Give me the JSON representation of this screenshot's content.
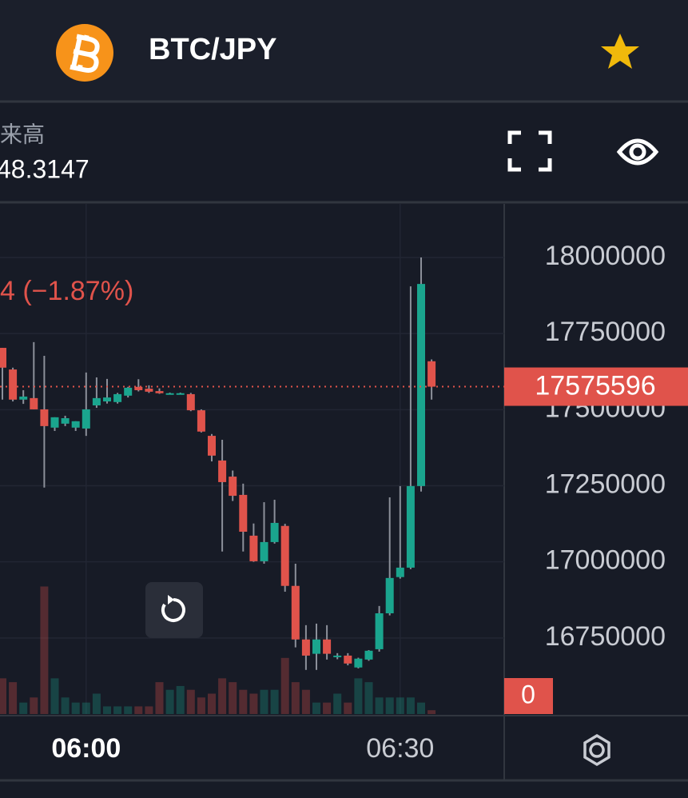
{
  "header": {
    "pair": "BTC/JPY"
  },
  "info": {
    "volume_label": "来高",
    "volume_value": "48.3147"
  },
  "chart_data": {
    "type": "candlestick",
    "change_label": "4 (−1.87%)",
    "categories": [
      null,
      null,
      null,
      null,
      null,
      null,
      null,
      null,
      "06:00",
      null,
      null,
      null,
      null,
      null,
      null,
      null,
      null,
      null,
      null,
      null,
      null,
      null,
      null,
      null,
      null,
      null,
      null,
      null,
      null,
      null,
      null,
      null,
      null,
      null,
      null,
      null,
      null,
      null,
      "06:30",
      null,
      null,
      null
    ],
    "open": [
      17703000,
      17632000,
      17533000,
      17538000,
      17501000,
      17441000,
      17454000,
      17441000,
      17438000,
      17514000,
      17527000,
      17525000,
      17546000,
      17575000,
      17569000,
      17561000,
      17553000,
      17553000,
      17551000,
      17498000,
      17414000,
      17333000,
      17280000,
      17220000,
      17086000,
      17002000,
      17065000,
      17118000,
      16921000,
      16745000,
      16698000,
      16745000,
      16687000,
      16692000,
      16653000,
      16679000,
      16713000,
      16831000,
      16950000,
      16981000,
      17249000,
      17659000
    ],
    "high": [
      17703000,
      17638000,
      17564000,
      17722000,
      17677000,
      17475000,
      17480000,
      17462000,
      17622000,
      17606000,
      17601000,
      17555000,
      17575000,
      17600000,
      17580000,
      17570000,
      17556000,
      17556000,
      17555000,
      17501000,
      17420000,
      17401000,
      17300000,
      17257000,
      17126000,
      17196000,
      17204000,
      17125000,
      16994000,
      16792000,
      16797000,
      16792000,
      16700000,
      16700000,
      16685000,
      16710000,
      16855000,
      17212000,
      17249000,
      17905000,
      18000000,
      17665000
    ],
    "low": [
      17533000,
      17527000,
      17519000,
      17501000,
      17244000,
      17430000,
      17446000,
      17430000,
      17414000,
      17506000,
      17520000,
      17520000,
      17540000,
      17560000,
      17555000,
      17552000,
      17552000,
      17552000,
      17495000,
      17425000,
      17330000,
      17034000,
      17200000,
      17034000,
      17000000,
      16994000,
      17060000,
      16902000,
      16719000,
      16645000,
      16645000,
      16679000,
      16680000,
      16660000,
      16650000,
      16675000,
      16705000,
      16824000,
      16945000,
      16976000,
      17231000,
      17533000
    ],
    "close": [
      17638000,
      17533000,
      17543000,
      17501000,
      17446000,
      17475000,
      17472000,
      17462000,
      17501000,
      17538000,
      17540000,
      17551000,
      17572000,
      17564000,
      17559000,
      17554000,
      17554000,
      17554000,
      17498000,
      17428000,
      17349000,
      17262000,
      17217000,
      17099000,
      17002000,
      17065000,
      17128000,
      16921000,
      16745000,
      16692000,
      16745000,
      16698000,
      16692000,
      16666000,
      16682000,
      16708000,
      16831000,
      16947000,
      16981000,
      17249000,
      17913000,
      17575596
    ],
    "volumes": [
      28,
      25,
      9,
      13,
      100,
      28,
      13,
      9,
      9,
      16,
      6,
      6,
      6,
      6,
      6,
      25,
      19,
      22,
      19,
      13,
      16,
      28,
      25,
      19,
      16,
      19,
      19,
      44,
      25,
      19,
      9,
      9,
      16,
      9,
      28,
      25,
      13,
      13,
      13,
      13,
      9,
      3
    ],
    "volume_ylim": [
      0,
      400
    ],
    "volume_ticks": [
      0
    ],
    "up_color": "#1aa58e",
    "down_color": "#e0534b",
    "wick_color": "#8c909a",
    "ylim": [
      16500000,
      18176000
    ],
    "yticks": [
      16750000,
      17000000,
      17250000,
      17500000,
      17750000,
      18000000
    ],
    "grid": true
  }
}
